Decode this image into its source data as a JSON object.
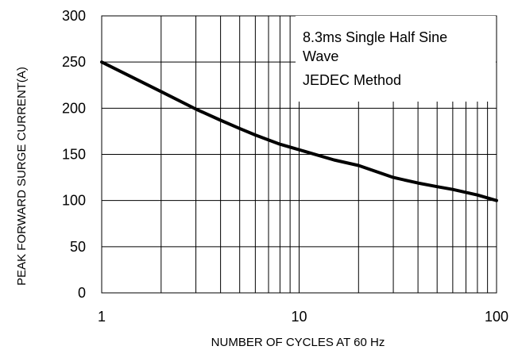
{
  "chart_data": {
    "type": "line",
    "x_scale": "log",
    "y_scale": "linear",
    "xlabel": "NUMBER OF CYCLES AT 60 Hz",
    "ylabel": "PEAK FORWARD SURGE CURRENT(A)",
    "xlim": [
      1,
      100
    ],
    "ylim": [
      0,
      300
    ],
    "x_ticks": [
      "1",
      "10",
      "100"
    ],
    "y_ticks": [
      "0",
      "50",
      "100",
      "150",
      "200",
      "250",
      "300"
    ],
    "grid": true,
    "annotation": [
      "8.3ms Single Half Sine",
      "Wave",
      "JEDEC Method"
    ],
    "series": [
      {
        "x": [
          1,
          2,
          3,
          4,
          5,
          6,
          8,
          10,
          15,
          20,
          30,
          40,
          50,
          60,
          80,
          100
        ],
        "y": [
          250,
          218,
          199,
          187,
          178,
          171,
          161,
          155,
          144,
          138,
          125,
          119,
          115,
          112,
          106,
          100
        ]
      }
    ],
    "line_color": "#000000"
  }
}
